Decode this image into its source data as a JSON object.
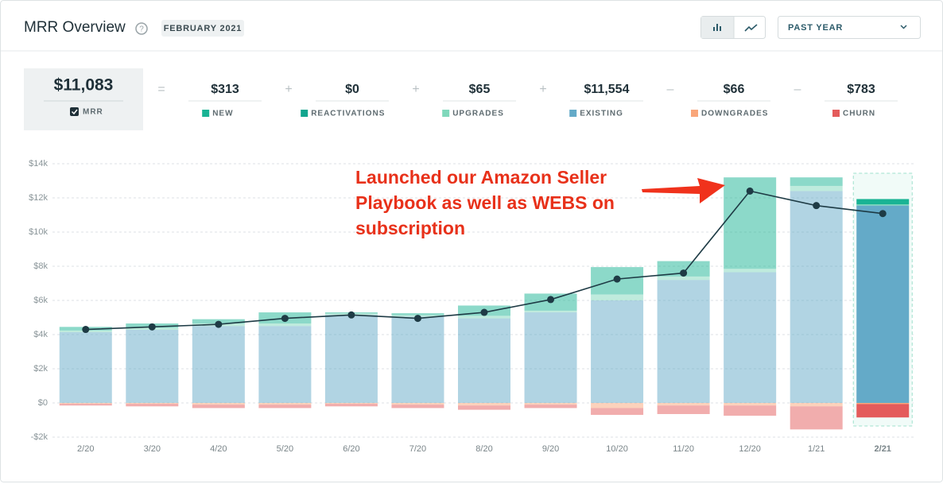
{
  "header": {
    "title": "MRR Overview",
    "period": "FEBRUARY 2021",
    "range": "PAST YEAR"
  },
  "summary": {
    "mrr_value": "$11,083",
    "mrr_label": "MRR",
    "values": [
      "$313",
      "$0",
      "$65",
      "$11,554",
      "$66",
      "$783"
    ],
    "operators": [
      "=",
      "+",
      "+",
      "+",
      "–",
      "–"
    ]
  },
  "chart_data": {
    "type": "bar",
    "stacked": true,
    "annotation": [
      "Launched our Amazon Seller",
      "Playbook as well as WEBS on",
      "subscription"
    ],
    "categories": [
      "2/20",
      "3/20",
      "4/20",
      "5/20",
      "6/20",
      "7/20",
      "8/20",
      "9/20",
      "10/20",
      "11/20",
      "12/20",
      "1/21",
      "2/21"
    ],
    "series": [
      {
        "name": "NEW",
        "color": "#19b394",
        "values": [
          210,
          250,
          250,
          650,
          70,
          120,
          600,
          1000,
          1600,
          900,
          5350,
          500,
          313
        ]
      },
      {
        "name": "REACTIVATIONS",
        "color": "#12a58e",
        "values": [
          0,
          0,
          0,
          0,
          0,
          0,
          0,
          0,
          0,
          0,
          0,
          0,
          0
        ]
      },
      {
        "name": "UPGRADES",
        "color": "#7fd8bb",
        "values": [
          100,
          120,
          150,
          150,
          80,
          80,
          150,
          100,
          350,
          200,
          200,
          300,
          65
        ]
      },
      {
        "name": "EXISTING",
        "color": "#64aac8",
        "values": [
          4140,
          4280,
          4500,
          4500,
          5150,
          5050,
          4950,
          5300,
          6000,
          7200,
          7650,
          12400,
          11554
        ]
      },
      {
        "name": "DOWNGRADES",
        "color": "#f9a67a",
        "values": [
          -50,
          -50,
          -100,
          -100,
          -50,
          -100,
          -150,
          -100,
          -300,
          -150,
          -150,
          -200,
          -66
        ]
      },
      {
        "name": "CHURN",
        "color": "#e45b5b",
        "values": [
          -100,
          -150,
          -200,
          -200,
          -150,
          -200,
          -250,
          -200,
          -400,
          -500,
          -600,
          -1350,
          -783
        ]
      }
    ],
    "line": {
      "color": "#1e3b45",
      "values": [
        4300,
        4450,
        4600,
        4950,
        5150,
        4950,
        5300,
        6050,
        7250,
        7600,
        12400,
        11550,
        11083
      ]
    },
    "ylim": [
      -2000,
      14000
    ],
    "yticks": [
      {
        "value": -2000,
        "label": "-$2k"
      },
      {
        "value": 0,
        "label": "$0"
      },
      {
        "value": 2000,
        "label": "$2k"
      },
      {
        "value": 4000,
        "label": "$4k"
      },
      {
        "value": 6000,
        "label": "$6k"
      },
      {
        "value": 8000,
        "label": "$8k"
      },
      {
        "value": 10000,
        "label": "$10k"
      },
      {
        "value": 12000,
        "label": "$12k"
      },
      {
        "value": 14000,
        "label": "$14k"
      }
    ],
    "grid": true
  }
}
